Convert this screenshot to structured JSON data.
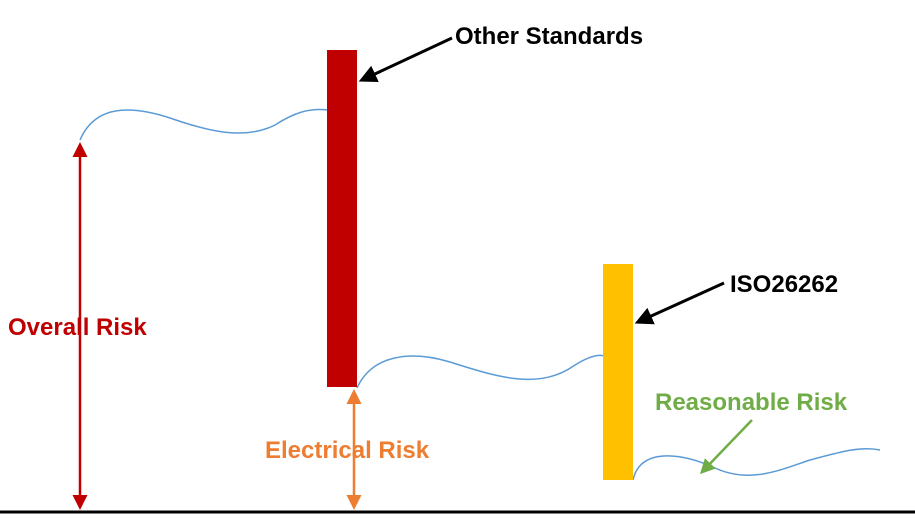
{
  "labels": {
    "other_standards": "Other Standards",
    "iso": "ISO26262",
    "overall_risk": "Overall Risk",
    "electrical_risk": "Electrical Risk",
    "reasonable_risk": "Reasonable Risk"
  },
  "colors": {
    "other_standards_bar": "#c00000",
    "iso_bar": "#ffc000",
    "overall_risk": "#c00000",
    "electrical_risk": "#ed7d31",
    "reasonable_risk": "#70ad47",
    "risk_curve": "#5b9bd5",
    "callout": "#000000",
    "baseline": "#000000"
  }
}
